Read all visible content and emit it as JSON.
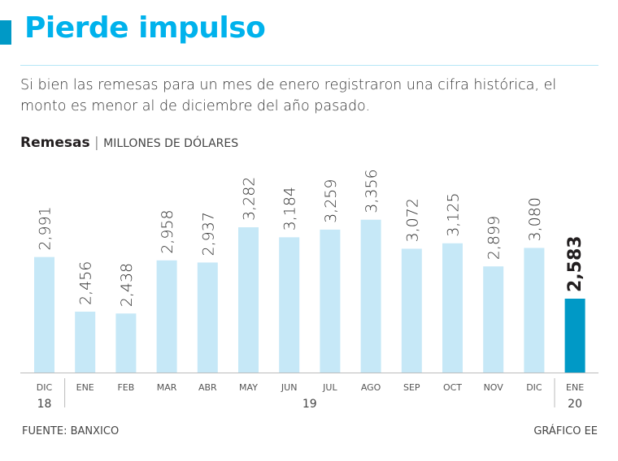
{
  "header": {
    "title": "Pierde impulso",
    "subtitle": "Si bien las remesas para un mes de enero registraron una cifra histórica, el monto es menor al de diciembre del año pasado."
  },
  "chart_data": {
    "type": "bar",
    "title": "Remesas",
    "unit": "MILLONES DE DÓLARES",
    "categories": [
      "DIC",
      "ENE",
      "FEB",
      "MAR",
      "ABR",
      "MAY",
      "JUN",
      "JUL",
      "AGO",
      "SEP",
      "OCT",
      "NOV",
      "DIC",
      "ENE"
    ],
    "year_groups": [
      {
        "label": "18",
        "count": 1
      },
      {
        "label": "19",
        "count": 12
      },
      {
        "label": "20",
        "count": 1
      }
    ],
    "values": [
      2991,
      2456,
      2438,
      2958,
      2937,
      3282,
      3184,
      3259,
      3356,
      3072,
      3125,
      2899,
      3080,
      2583
    ],
    "value_labels": [
      "2,991",
      "2,456",
      "2,438",
      "2,958",
      "2,937",
      "3,282",
      "3,184",
      "3,259",
      "3,356",
      "3,072",
      "3,125",
      "2,899",
      "3,080",
      "2,583"
    ],
    "highlight_index": 13,
    "ylim": [
      1860,
      3600
    ],
    "grid": false,
    "colors": {
      "bar": "#c6e8f7",
      "highlight": "#0099c6",
      "title": "#00b2ec"
    }
  },
  "footer": {
    "source": "FUENTE: BANXICO",
    "credit": "GRÁFICO EE"
  }
}
